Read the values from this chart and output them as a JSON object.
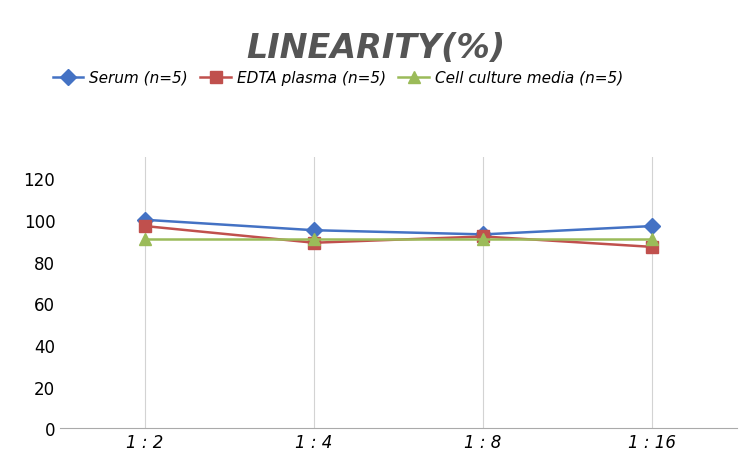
{
  "title": "LINEARITY(%)",
  "x_labels": [
    "1 : 2",
    "1 : 4",
    "1 : 8",
    "1 : 16"
  ],
  "x_positions": [
    0,
    1,
    2,
    3
  ],
  "series": [
    {
      "label": "Serum (n=5)",
      "values": [
        100,
        95,
        93,
        97
      ],
      "color": "#4472C4",
      "marker": "D",
      "linestyle": "-"
    },
    {
      "label": "EDTA plasma (n=5)",
      "values": [
        97,
        89,
        92,
        87
      ],
      "color": "#C0504D",
      "marker": "s",
      "linestyle": "-"
    },
    {
      "label": "Cell culture media (n=5)",
      "values": [
        91,
        91,
        91,
        91
      ],
      "color": "#9BBB59",
      "marker": "^",
      "linestyle": "-"
    }
  ],
  "ylim": [
    0,
    130
  ],
  "yticks": [
    0,
    20,
    40,
    60,
    80,
    100,
    120
  ],
  "background_color": "#ffffff",
  "grid_color": "#d3d3d3",
  "title_fontsize": 24,
  "legend_fontsize": 11,
  "tick_fontsize": 12
}
